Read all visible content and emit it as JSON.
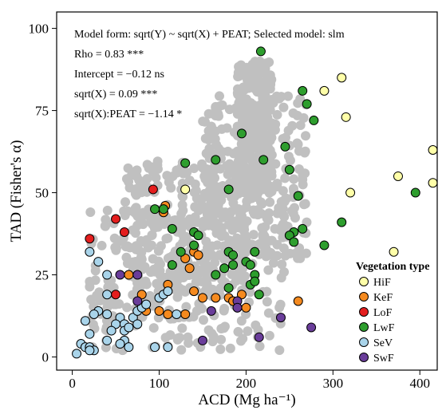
{
  "chart_data": {
    "type": "scatter",
    "xlabel": "ACD (Mg ha⁻¹)",
    "ylabel": "TAD (Fisher's α)",
    "xlim": [
      -18,
      420
    ],
    "ylim": [
      -4,
      105
    ],
    "xticks": [
      0,
      100,
      200,
      300,
      400
    ],
    "yticks": [
      0,
      25,
      50,
      75,
      100
    ],
    "grid": false,
    "annotations": [
      "Model form: sqrt(Y) ~ sqrt(X) + PEAT; Selected model: slm",
      "Rho = 0.83 ***",
      "Intercept = −0.12 ns",
      "sqrt(X) = 0.09 ***",
      "sqrt(X):PEAT = −1.14 *"
    ],
    "background_points": {
      "color": "#c0c0c0",
      "description_blobs": [
        {
          "x": [
            20,
            250
          ],
          "y": [
            2,
            45
          ]
        },
        {
          "x": [
            60,
            200
          ],
          "y": [
            20,
            60
          ]
        },
        {
          "x": [
            150,
            270
          ],
          "y": [
            30,
            80
          ]
        },
        {
          "x": [
            190,
            230
          ],
          "y": [
            50,
            90
          ]
        }
      ]
    },
    "legend": {
      "title": "Vegetation type",
      "position": "bottom-right",
      "entries": [
        {
          "name": "HiF",
          "color": "#ffffa8"
        },
        {
          "name": "KeF",
          "color": "#f58a1f"
        },
        {
          "name": "LoF",
          "color": "#e41e1e"
        },
        {
          "name": "LwF",
          "color": "#2e9e2e"
        },
        {
          "name": "SeV",
          "color": "#a9d4ea"
        },
        {
          "name": "SwF",
          "color": "#6a3d9a"
        }
      ]
    },
    "series": [
      {
        "name": "HiF",
        "color": "#ffffa8",
        "points": [
          [
            290,
            81
          ],
          [
            310,
            85
          ],
          [
            315,
            73
          ],
          [
            415,
            63
          ],
          [
            375,
            55
          ],
          [
            415,
            53
          ],
          [
            320,
            50
          ],
          [
            370,
            32
          ],
          [
            130,
            51
          ]
        ]
      },
      {
        "name": "KeF",
        "color": "#f58a1f",
        "points": [
          [
            107,
            46
          ],
          [
            105,
            44
          ],
          [
            140,
            32
          ],
          [
            145,
            31
          ],
          [
            135,
            27
          ],
          [
            130,
            30
          ],
          [
            140,
            20
          ],
          [
            150,
            18
          ],
          [
            165,
            18
          ],
          [
            180,
            18
          ],
          [
            185,
            17
          ],
          [
            195,
            19
          ],
          [
            190,
            15
          ],
          [
            200,
            15
          ],
          [
            110,
            22
          ],
          [
            65,
            25
          ],
          [
            80,
            19
          ],
          [
            85,
            14
          ],
          [
            100,
            14
          ],
          [
            110,
            13
          ],
          [
            130,
            13
          ],
          [
            260,
            17
          ]
        ]
      },
      {
        "name": "LoF",
        "color": "#e41e1e",
        "points": [
          [
            20,
            36
          ],
          [
            50,
            42
          ],
          [
            60,
            38
          ],
          [
            93,
            51
          ],
          [
            50,
            19
          ]
        ]
      },
      {
        "name": "LwF",
        "color": "#2e9e2e",
        "points": [
          [
            217,
            93
          ],
          [
            265,
            81
          ],
          [
            270,
            77
          ],
          [
            278,
            72
          ],
          [
            245,
            64
          ],
          [
            195,
            68
          ],
          [
            220,
            60
          ],
          [
            130,
            59
          ],
          [
            165,
            60
          ],
          [
            250,
            57
          ],
          [
            260,
            49
          ],
          [
            180,
            51
          ],
          [
            395,
            50
          ],
          [
            310,
            41
          ],
          [
            255,
            38
          ],
          [
            250,
            37
          ],
          [
            255,
            35
          ],
          [
            265,
            39
          ],
          [
            290,
            34
          ],
          [
            105,
            45
          ],
          [
            95,
            45
          ],
          [
            140,
            38
          ],
          [
            145,
            37
          ],
          [
            140,
            34
          ],
          [
            115,
            39
          ],
          [
            125,
            32
          ],
          [
            115,
            28
          ],
          [
            180,
            32
          ],
          [
            185,
            31
          ],
          [
            175,
            27
          ],
          [
            185,
            28
          ],
          [
            200,
            29
          ],
          [
            210,
            32
          ],
          [
            205,
            28
          ],
          [
            210,
            25
          ],
          [
            205,
            22
          ],
          [
            210,
            23
          ],
          [
            165,
            25
          ],
          [
            215,
            19
          ],
          [
            180,
            21
          ]
        ]
      },
      {
        "name": "SeV",
        "color": "#a9d4ea",
        "points": [
          [
            20,
            32
          ],
          [
            30,
            29
          ],
          [
            40,
            25
          ],
          [
            40,
            19
          ],
          [
            30,
            14
          ],
          [
            25,
            13
          ],
          [
            40,
            13
          ],
          [
            15,
            11
          ],
          [
            20,
            7
          ],
          [
            10,
            4
          ],
          [
            15,
            3
          ],
          [
            20,
            3
          ],
          [
            25,
            2
          ],
          [
            5,
            1
          ],
          [
            20,
            2
          ],
          [
            40,
            5
          ],
          [
            55,
            12
          ],
          [
            60,
            10
          ],
          [
            60,
            8
          ],
          [
            65,
            9
          ],
          [
            70,
            12
          ],
          [
            75,
            14
          ],
          [
            80,
            15
          ],
          [
            85,
            16
          ],
          [
            75,
            10
          ],
          [
            60,
            5
          ],
          [
            55,
            4
          ],
          [
            65,
            3
          ],
          [
            95,
            3
          ],
          [
            110,
            3
          ],
          [
            100,
            18
          ],
          [
            105,
            19
          ],
          [
            110,
            20
          ],
          [
            120,
            13
          ],
          [
            50,
            10
          ],
          [
            45,
            8
          ]
        ]
      },
      {
        "name": "SwF",
        "color": "#6a3d9a",
        "points": [
          [
            55,
            25
          ],
          [
            75,
            25
          ],
          [
            75,
            17
          ],
          [
            190,
            17
          ],
          [
            190,
            15
          ],
          [
            160,
            14
          ],
          [
            240,
            12
          ],
          [
            275,
            9
          ],
          [
            215,
            6
          ],
          [
            150,
            5
          ]
        ]
      }
    ]
  }
}
